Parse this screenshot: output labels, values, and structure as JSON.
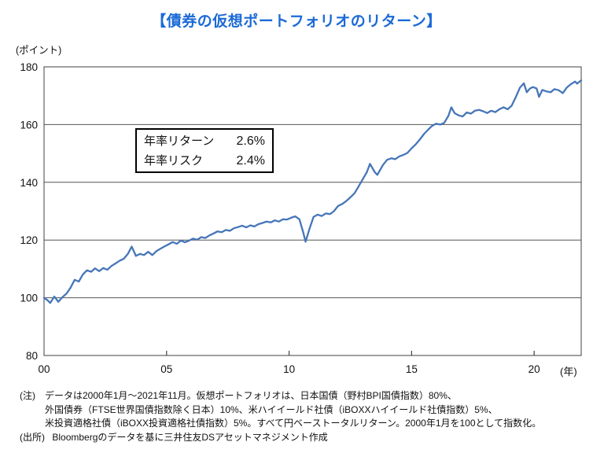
{
  "title": "【債券の仮想ポートフォリオのリターン】",
  "y_axis_unit": "(ポイント)",
  "x_axis_unit": "(年)",
  "stats_box": {
    "rows": [
      {
        "label": "年率リターン",
        "value": "2.6%"
      },
      {
        "label": "年率リスク",
        "value": "2.4%"
      }
    ]
  },
  "notes": [
    {
      "prefix": "(注)",
      "text": "データは2000年1月～2021年11月。仮想ポートフォリオは、日本国債（野村BPI国債指数）80%、"
    },
    {
      "prefix": "",
      "text": "外国債券（FTSE世界国債指数除く日本）10%、米ハイイールド社債（iBOXXハイイールド社債指数）5%、"
    },
    {
      "prefix": "",
      "text": "米投資適格社債（iBOXX投資適格社債指数）5%。すべて円ベーストータルリターン。2000年1月を100として指数化。"
    },
    {
      "prefix": "(出所)",
      "text": "Bloombergのデータを基に三井住友DSアセットマネジメント作成"
    }
  ],
  "colors": {
    "title": "#1b6ad6",
    "line": "#4676b8",
    "axis": "#404040",
    "grid": "#555555",
    "text": "#111111"
  },
  "chart_data": {
    "type": "line",
    "title": "債券の仮想ポートフォリオのリターン",
    "xlabel": "年 (years, 2000-01 = 0)",
    "ylabel": "ポイント",
    "ylim": [
      80,
      180
    ],
    "xlim_years_offset": [
      0,
      21.92
    ],
    "x_ticks": [
      {
        "year_offset": 0,
        "label": "00",
        "tick_mark": false
      },
      {
        "year_offset": 5,
        "label": "05",
        "tick_mark": true
      },
      {
        "year_offset": 10,
        "label": "10",
        "tick_mark": true
      },
      {
        "year_offset": 15,
        "label": "15",
        "tick_mark": true
      },
      {
        "year_offset": 20,
        "label": "20",
        "tick_mark": true
      }
    ],
    "y_ticks": [
      80,
      100,
      120,
      140,
      160,
      180
    ],
    "grid_y_values": [
      100,
      120,
      140,
      160
    ],
    "legend": "none",
    "annotations": [
      {
        "text": "年率リターン 2.6%"
      },
      {
        "text": "年率リスク 2.4%"
      }
    ],
    "series": [
      {
        "name": "債券の仮想ポートフォリオ指数（2000年1月=100）",
        "points": [
          [
            0,
            100
          ],
          [
            0.17,
            98.9
          ],
          [
            0.25,
            98.2
          ],
          [
            0.42,
            100.4
          ],
          [
            0.58,
            98.6
          ],
          [
            0.75,
            100.2
          ],
          [
            0.92,
            101.5
          ],
          [
            1.08,
            103.5
          ],
          [
            1.25,
            106.2
          ],
          [
            1.42,
            105.6
          ],
          [
            1.58,
            108.0
          ],
          [
            1.75,
            109.5
          ],
          [
            1.92,
            109.0
          ],
          [
            2.08,
            110.2
          ],
          [
            2.25,
            109.2
          ],
          [
            2.42,
            110.3
          ],
          [
            2.58,
            109.7
          ],
          [
            2.75,
            111.0
          ],
          [
            2.92,
            111.9
          ],
          [
            3.08,
            112.8
          ],
          [
            3.25,
            113.5
          ],
          [
            3.42,
            115.2
          ],
          [
            3.58,
            117.7
          ],
          [
            3.75,
            114.5
          ],
          [
            3.92,
            115.2
          ],
          [
            4.08,
            114.8
          ],
          [
            4.25,
            115.9
          ],
          [
            4.42,
            114.8
          ],
          [
            4.58,
            116.1
          ],
          [
            4.75,
            117.0
          ],
          [
            4.92,
            117.8
          ],
          [
            5.08,
            118.5
          ],
          [
            5.25,
            119.3
          ],
          [
            5.42,
            118.7
          ],
          [
            5.58,
            119.8
          ],
          [
            5.75,
            119.2
          ],
          [
            5.92,
            119.8
          ],
          [
            6.08,
            120.5
          ],
          [
            6.25,
            120.1
          ],
          [
            6.42,
            121.0
          ],
          [
            6.58,
            120.7
          ],
          [
            6.75,
            121.6
          ],
          [
            6.92,
            122.3
          ],
          [
            7.08,
            123.0
          ],
          [
            7.25,
            122.7
          ],
          [
            7.42,
            123.5
          ],
          [
            7.58,
            123.2
          ],
          [
            7.75,
            124.1
          ],
          [
            7.92,
            124.5
          ],
          [
            8.08,
            125.0
          ],
          [
            8.25,
            124.4
          ],
          [
            8.42,
            125.1
          ],
          [
            8.58,
            124.7
          ],
          [
            8.75,
            125.5
          ],
          [
            8.92,
            125.9
          ],
          [
            9.08,
            126.4
          ],
          [
            9.25,
            126.1
          ],
          [
            9.42,
            126.8
          ],
          [
            9.58,
            126.4
          ],
          [
            9.75,
            127.2
          ],
          [
            9.92,
            127.1
          ],
          [
            10.08,
            127.7
          ],
          [
            10.25,
            128.2
          ],
          [
            10.42,
            127.2
          ],
          [
            10.58,
            122.5
          ],
          [
            10.67,
            119.4
          ],
          [
            10.83,
            123.8
          ],
          [
            11.0,
            128.0
          ],
          [
            11.17,
            128.8
          ],
          [
            11.33,
            128.3
          ],
          [
            11.5,
            129.2
          ],
          [
            11.67,
            129.0
          ],
          [
            11.83,
            130.0
          ],
          [
            12.0,
            131.8
          ],
          [
            12.17,
            132.5
          ],
          [
            12.33,
            133.5
          ],
          [
            12.5,
            134.8
          ],
          [
            12.67,
            136.2
          ],
          [
            12.83,
            138.5
          ],
          [
            13.0,
            141.0
          ],
          [
            13.17,
            143.5
          ],
          [
            13.3,
            146.4
          ],
          [
            13.5,
            143.5
          ],
          [
            13.6,
            142.6
          ],
          [
            13.83,
            146.0
          ],
          [
            14.0,
            147.8
          ],
          [
            14.17,
            148.3
          ],
          [
            14.33,
            148.0
          ],
          [
            14.5,
            149.0
          ],
          [
            14.67,
            149.5
          ],
          [
            14.83,
            150.2
          ],
          [
            15.0,
            151.8
          ],
          [
            15.17,
            153.2
          ],
          [
            15.33,
            154.8
          ],
          [
            15.5,
            156.7
          ],
          [
            15.67,
            158.2
          ],
          [
            15.83,
            159.5
          ],
          [
            16.0,
            160.3
          ],
          [
            16.17,
            160.0
          ],
          [
            16.33,
            160.6
          ],
          [
            16.5,
            163.0
          ],
          [
            16.62,
            166.0
          ],
          [
            16.75,
            164.0
          ],
          [
            16.92,
            163.2
          ],
          [
            17.08,
            162.8
          ],
          [
            17.25,
            164.2
          ],
          [
            17.42,
            163.8
          ],
          [
            17.58,
            164.8
          ],
          [
            17.75,
            165.1
          ],
          [
            17.92,
            164.6
          ],
          [
            18.08,
            164.0
          ],
          [
            18.25,
            164.8
          ],
          [
            18.42,
            164.3
          ],
          [
            18.58,
            165.3
          ],
          [
            18.75,
            166.0
          ],
          [
            18.92,
            165.3
          ],
          [
            19.08,
            166.5
          ],
          [
            19.25,
            169.5
          ],
          [
            19.42,
            172.8
          ],
          [
            19.58,
            174.3
          ],
          [
            19.7,
            171.2
          ],
          [
            19.83,
            172.5
          ],
          [
            19.95,
            173.0
          ],
          [
            20.1,
            172.5
          ],
          [
            20.2,
            169.6
          ],
          [
            20.33,
            172.0
          ],
          [
            20.5,
            171.5
          ],
          [
            20.67,
            171.2
          ],
          [
            20.83,
            172.3
          ],
          [
            21.0,
            171.9
          ],
          [
            21.17,
            170.9
          ],
          [
            21.33,
            172.8
          ],
          [
            21.5,
            174.0
          ],
          [
            21.67,
            174.9
          ],
          [
            21.75,
            174.2
          ],
          [
            21.92,
            175.3
          ]
        ]
      }
    ]
  }
}
